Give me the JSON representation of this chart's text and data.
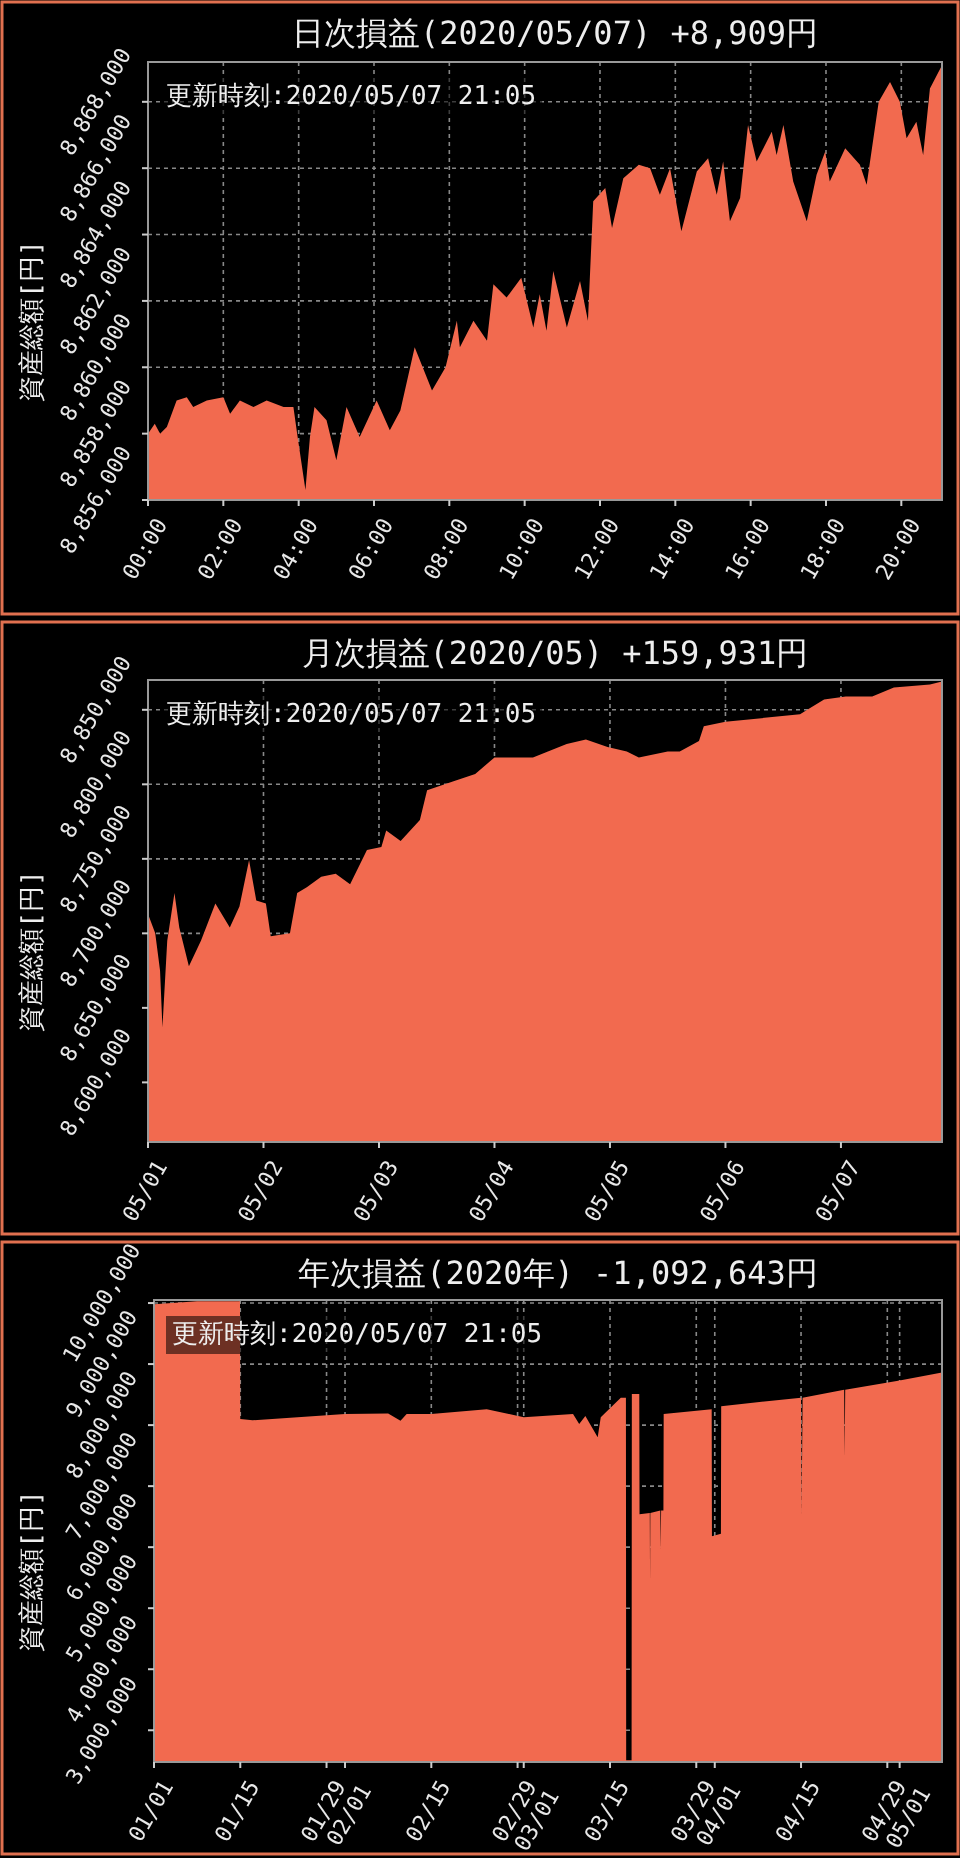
{
  "chart_data": [
    {
      "type": "area",
      "title": "日次損益(2020/05/07) +8,909円",
      "ylabel": "資産総額[円]",
      "annotations": [
        "更新時刻:2020/05/07 21:05"
      ],
      "color": "#f26a4f",
      "grid": true,
      "x": [
        0,
        0.18,
        0.32,
        0.5,
        0.76,
        1.03,
        1.2,
        1.56,
        2.0,
        2.18,
        2.44,
        2.8,
        3.15,
        3.6,
        3.86,
        3.96,
        4.18,
        4.3,
        4.42,
        4.74,
        5.0,
        5.27,
        5.62,
        6.07,
        6.42,
        6.7,
        7.08,
        7.54,
        7.9,
        8.2,
        8.28,
        8.64,
        9.0,
        9.17,
        9.52,
        9.91,
        10.23,
        10.4,
        10.58,
        10.76,
        11.12,
        11.47,
        11.68,
        11.82,
        12.14,
        12.32,
        12.62,
        13.03,
        13.33,
        13.59,
        13.86,
        14.16,
        14.57,
        14.87,
        15.1,
        15.27,
        15.45,
        15.72,
        15.93,
        16.16,
        16.56,
        16.69,
        16.87,
        17.13,
        17.49,
        17.75,
        17.98,
        18.1,
        18.51,
        18.9,
        19.08,
        19.4,
        19.7,
        19.96,
        20.14,
        20.4,
        20.58,
        20.76,
        21.08
      ],
      "values": [
        8858000,
        8858300,
        8858000,
        8858200,
        8859000,
        8859100,
        8858800,
        8859000,
        8859100,
        8858600,
        8859000,
        8858800,
        8859000,
        8858800,
        8858800,
        8858000,
        8856300,
        8857900,
        8858800,
        8858400,
        8857200,
        8858800,
        8857900,
        8859000,
        8858100,
        8858700,
        8860600,
        8859300,
        8860000,
        8861400,
        8860600,
        8861400,
        8860800,
        8862500,
        8862100,
        8862700,
        8861200,
        8862200,
        8861100,
        8862900,
        8861200,
        8862600,
        8861400,
        8865000,
        8865400,
        8864200,
        8865700,
        8866100,
        8866000,
        8865200,
        8866000,
        8864100,
        8865900,
        8866300,
        8865200,
        8866200,
        8864400,
        8865100,
        8867300,
        8866200,
        8867100,
        8866400,
        8867300,
        8865600,
        8864400,
        8865800,
        8866500,
        8865600,
        8866600,
        8866100,
        8865500,
        8868000,
        8868600,
        8868000,
        8866900,
        8867400,
        8866400,
        8868400,
        8869100
      ],
      "xlim": [
        0,
        21.08
      ],
      "ylim": [
        8856000,
        8869200
      ],
      "xticks": [
        {
          "value": 0,
          "label": "00:00"
        },
        {
          "value": 2,
          "label": "02:00"
        },
        {
          "value": 4,
          "label": "04:00"
        },
        {
          "value": 6,
          "label": "06:00"
        },
        {
          "value": 8,
          "label": "08:00"
        },
        {
          "value": 10,
          "label": "10:00"
        },
        {
          "value": 12,
          "label": "12:00"
        },
        {
          "value": 14,
          "label": "14:00"
        },
        {
          "value": 16,
          "label": "16:00"
        },
        {
          "value": 18,
          "label": "18:00"
        },
        {
          "value": 20,
          "label": "20:00"
        }
      ],
      "yticks": [
        {
          "value": 8856000,
          "label": "8,856,000"
        },
        {
          "value": 8858000,
          "label": "8,858,000"
        },
        {
          "value": 8860000,
          "label": "8,860,000"
        },
        {
          "value": 8862000,
          "label": "8,862,000"
        },
        {
          "value": 8864000,
          "label": "8,864,000"
        },
        {
          "value": 8866000,
          "label": "8,866,000"
        },
        {
          "value": 8868000,
          "label": "8,868,000"
        }
      ]
    },
    {
      "type": "area",
      "title": "月次損益(2020/05) +159,931円",
      "ylabel": "資産総額[円]",
      "annotations": [
        "更新時刻:2020/05/07 21:05"
      ],
      "color": "#f26a4f",
      "grid": true,
      "x": [
        "2020-05-01T00:00",
        "2020-05-01T01:30",
        "2020-05-01T02:30",
        "2020-05-01T03:00",
        "2020-05-01T04:00",
        "2020-05-01T05:30",
        "2020-05-01T06:30",
        "2020-05-01T08:30",
        "2020-05-01T11:00",
        "2020-05-01T14:00",
        "2020-05-01T17:00",
        "2020-05-01T19:00",
        "2020-05-01T21:00",
        "2020-05-01T22:30",
        "2020-05-02T00:30",
        "2020-05-02T01:30",
        "2020-05-02T05:30",
        "2020-05-02T07:00",
        "2020-05-02T09:00",
        "2020-05-02T12:00",
        "2020-05-02T15:00",
        "2020-05-02T18:00",
        "2020-05-02T21:30",
        "2020-05-03T00:30",
        "2020-05-03T01:30",
        "2020-05-03T04:30",
        "2020-05-03T08:30",
        "2020-05-03T10:00",
        "2020-05-03T15:30",
        "2020-05-03T20:00",
        "2020-05-04T00:00",
        "2020-05-04T08:00",
        "2020-05-04T15:00",
        "2020-05-04T19:00",
        "2020-05-04T23:30",
        "2020-05-05T03:30",
        "2020-05-05T06:00",
        "2020-05-05T12:00",
        "2020-05-05T14:30",
        "2020-05-05T18:30",
        "2020-05-05T19:30",
        "2020-05-06T00:00",
        "2020-05-06T15:30",
        "2020-05-06T17:00",
        "2020-05-06T20:30",
        "2020-05-07T01:00",
        "2020-05-07T06:30",
        "2020-05-07T11:00",
        "2020-05-07T18:30",
        "2020-05-07T21:00"
      ],
      "values": [
        8713000,
        8700000,
        8675000,
        8637000,
        8695000,
        8727000,
        8704000,
        8678000,
        8695000,
        8720000,
        8704000,
        8718000,
        8749000,
        8722000,
        8720000,
        8698000,
        8700000,
        8727000,
        8731000,
        8738000,
        8740000,
        8733000,
        8756000,
        8758000,
        8769000,
        8762000,
        8776000,
        8796000,
        8802000,
        8807000,
        8818000,
        8818000,
        8827000,
        8830000,
        8825000,
        8822000,
        8818000,
        8822000,
        8822000,
        8829000,
        8839000,
        8842000,
        8847000,
        8850000,
        8857000,
        8859000,
        8859000,
        8865000,
        8867000,
        8869000
      ],
      "xlim": [
        "2020-05-01T00:00",
        "2020-05-07T21:00"
      ],
      "ylim": [
        8560000,
        8870000
      ],
      "xticks": [
        {
          "value": "2020-05-01",
          "label": "05/01"
        },
        {
          "value": "2020-05-02",
          "label": "05/02"
        },
        {
          "value": "2020-05-03",
          "label": "05/03"
        },
        {
          "value": "2020-05-04",
          "label": "05/04"
        },
        {
          "value": "2020-05-05",
          "label": "05/05"
        },
        {
          "value": "2020-05-06",
          "label": "05/06"
        },
        {
          "value": "2020-05-07",
          "label": "05/07"
        }
      ],
      "yticks": [
        {
          "value": 8600000,
          "label": "8,600,000"
        },
        {
          "value": 8650000,
          "label": "8,650,000"
        },
        {
          "value": 8700000,
          "label": "8,700,000"
        },
        {
          "value": 8750000,
          "label": "8,750,000"
        },
        {
          "value": 8800000,
          "label": "8,800,000"
        },
        {
          "value": 8850000,
          "label": "8,850,000"
        }
      ]
    },
    {
      "type": "area",
      "title": "年次損益(2020年) -1,092,643円",
      "ylabel": "資産総額[円]",
      "annotations": [
        "更新時刻:2020/05/07 21:05"
      ],
      "color": "#f26a4f",
      "grid": true,
      "x": [
        "2020-01-01T00:00",
        "2020-01-08T00:00",
        "2020-01-14T23:00",
        "2020-01-15T00:00",
        "2020-01-17T00:00",
        "2020-02-01T00:00",
        "2020-02-08T00:00",
        "2020-02-10T00:00",
        "2020-02-11T00:00",
        "2020-02-15T00:00",
        "2020-02-24T00:00",
        "2020-03-01T00:00",
        "2020-03-09T00:00",
        "2020-03-10T00:00",
        "2020-03-11T00:00",
        "2020-03-13T00:00",
        "2020-03-13T12:00",
        "2020-03-16T18:00",
        "2020-03-17T14:00",
        "2020-03-17T15:00",
        "2020-03-18T12:00",
        "2020-03-18T13:00",
        "2020-03-19T18:00",
        "2020-03-19T19:00",
        "2020-03-21T11:00",
        "2020-03-21T12:00",
        "2020-03-21T13:00",
        "2020-03-23T04:00",
        "2020-03-23T05:00",
        "2020-03-23T07:00",
        "2020-03-23T16:00",
        "2020-03-23T17:00",
        "2020-03-31T12:00",
        "2020-03-31T13:00",
        "2020-04-02T00:00",
        "2020-04-02T01:00",
        "2020-04-15T00:00",
        "2020-04-15T02:00",
        "2020-04-15T06:00",
        "2020-04-22T00:00",
        "2020-04-22T02:00",
        "2020-04-22T04:00",
        "2020-05-01T00:00",
        "2020-05-07T21:00"
      ],
      "values": [
        9980000,
        10030000,
        10030000,
        8100000,
        8080000,
        8180000,
        8190000,
        8070000,
        8180000,
        8180000,
        8260000,
        8130000,
        8180000,
        8020000,
        8150000,
        7800000,
        8130000,
        8450000,
        8450000,
        2510000,
        2510000,
        8510000,
        8510000,
        6540000,
        6560000,
        5450000,
        6560000,
        6600000,
        5940000,
        6600000,
        6600000,
        8180000,
        8260000,
        6180000,
        6220000,
        8310000,
        8450000,
        6510000,
        8450000,
        8580000,
        7470000,
        8580000,
        8730000,
        8860000
      ],
      "xlim": [
        "2020-01-01T00:00",
        "2020-05-07T21:00"
      ],
      "ylim": [
        2480000,
        10050000
      ],
      "xticks": [
        {
          "value": "2020-01-01",
          "label": "01/01"
        },
        {
          "value": "2020-01-15",
          "label": "01/15"
        },
        {
          "value": "2020-01-29",
          "label": "01/29"
        },
        {
          "value": "2020-02-01",
          "label": "02/01"
        },
        {
          "value": "2020-02-15",
          "label": "02/15"
        },
        {
          "value": "2020-02-29",
          "label": "02/29"
        },
        {
          "value": "2020-03-01",
          "label": "03/01"
        },
        {
          "value": "2020-03-15",
          "label": "03/15"
        },
        {
          "value": "2020-03-29",
          "label": "03/29"
        },
        {
          "value": "2020-04-01",
          "label": "04/01"
        },
        {
          "value": "2020-04-15",
          "label": "04/15"
        },
        {
          "value": "2020-04-29",
          "label": "04/29"
        },
        {
          "value": "2020-05-01",
          "label": "05/01"
        }
      ],
      "yticks": [
        {
          "value": 3000000,
          "label": "3,000,000"
        },
        {
          "value": 4000000,
          "label": "4,000,000"
        },
        {
          "value": 5000000,
          "label": "5,000,000"
        },
        {
          "value": 6000000,
          "label": "6,000,000"
        },
        {
          "value": 7000000,
          "label": "7,000,000"
        },
        {
          "value": 8000000,
          "label": "8,000,000"
        },
        {
          "value": 9000000,
          "label": "9,000,000"
        },
        {
          "value": 10000000,
          "label": "10,000,000"
        }
      ]
    }
  ]
}
